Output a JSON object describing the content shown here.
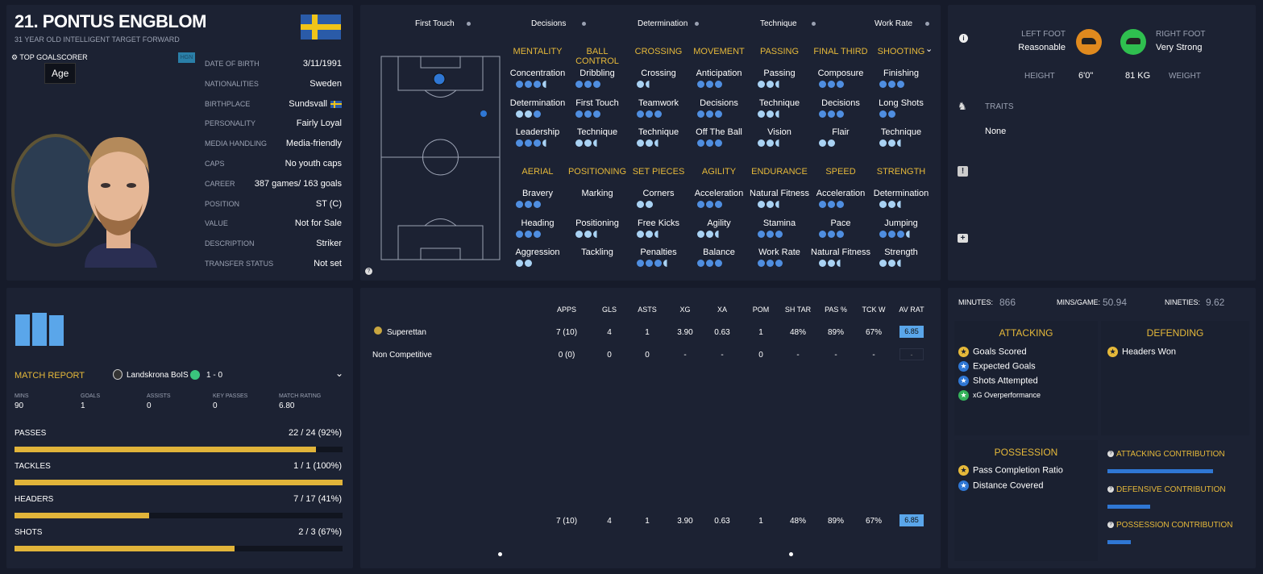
{
  "player": {
    "number_name": "21. PONTUS ENGBLOM",
    "subtitle": "31 YEAR OLD INTELLIGENT TARGET FORWARD",
    "badge": "TOP GOALSCORER",
    "tooltip": "Age",
    "hgn": "HGN",
    "flag_colors": [
      "#2a5ba8",
      "#f0c419"
    ]
  },
  "details": [
    {
      "label": "DATE OF BIRTH",
      "value": "3/11/1991"
    },
    {
      "label": "NATIONALITIES",
      "value": "Sweden"
    },
    {
      "label": "BIRTHPLACE",
      "value": "Sundsvall"
    },
    {
      "label": "PERSONALITY",
      "value": "Fairly Loyal"
    },
    {
      "label": "MEDIA HANDLING",
      "value": "Media-friendly"
    },
    {
      "label": "CAPS",
      "value": "No youth caps"
    },
    {
      "label": "CAREER",
      "value": "387   games/ 163 goals"
    },
    {
      "label": "POSITION",
      "value": "ST (C)"
    },
    {
      "label": "VALUE",
      "value": "Not for Sale"
    },
    {
      "label": "DESCRIPTION",
      "value": "Striker"
    },
    {
      "label": "TRANSFER STATUS",
      "value": "Not set"
    }
  ],
  "top_attrs": [
    "First Touch",
    "Decisions",
    "Determination",
    "Technique",
    "Work Rate"
  ],
  "attr_groups_top": [
    {
      "head": "MENTALITY",
      "items": [
        {
          "n": "Concentration",
          "d": "ddd h"
        },
        {
          "n": "Determination",
          "d": "ll d"
        },
        {
          "n": "Leadership",
          "d": "dddh"
        }
      ]
    },
    {
      "head": "BALL CONTROL",
      "items": [
        {
          "n": "Dribbling",
          "d": "ddd"
        },
        {
          "n": "First Touch",
          "d": "ddd"
        },
        {
          "n": "Technique",
          "d": "llh"
        }
      ]
    },
    {
      "head": "CROSSING",
      "items": [
        {
          "n": "Crossing",
          "d": "lh"
        },
        {
          "n": "Teamwork",
          "d": "ddd"
        },
        {
          "n": "Technique",
          "d": "llh"
        }
      ]
    },
    {
      "head": "MOVEMENT",
      "items": [
        {
          "n": "Anticipation",
          "d": "ddd"
        },
        {
          "n": "Decisions",
          "d": "ddd"
        },
        {
          "n": "Off The Ball",
          "d": "ddd"
        }
      ]
    },
    {
      "head": "PASSING",
      "items": [
        {
          "n": "Passing",
          "d": "llh"
        },
        {
          "n": "Technique",
          "d": "llh"
        },
        {
          "n": "Vision",
          "d": "llh"
        }
      ]
    },
    {
      "head": "FINAL THIRD",
      "items": [
        {
          "n": "Composure",
          "d": "ddd"
        },
        {
          "n": "Decisions",
          "d": "ddd"
        },
        {
          "n": "Flair",
          "d": "ll"
        }
      ]
    },
    {
      "head": "SHOOTING",
      "items": [
        {
          "n": "Finishing",
          "d": "ddd"
        },
        {
          "n": "Long Shots",
          "d": "dd"
        },
        {
          "n": "Technique",
          "d": "llh"
        }
      ]
    }
  ],
  "attr_groups_bottom": [
    {
      "head": "AERIAL",
      "items": [
        {
          "n": "Bravery",
          "d": "ddd"
        },
        {
          "n": "Heading",
          "d": "ddd"
        },
        {
          "n": "Aggression",
          "d": "ll"
        }
      ]
    },
    {
      "head": "POSITIONING",
      "items": [
        {
          "n": "Marking",
          "d": ""
        },
        {
          "n": "Positioning",
          "d": "llh"
        },
        {
          "n": "Tackling",
          "d": ""
        }
      ]
    },
    {
      "head": "SET PIECES",
      "items": [
        {
          "n": "Corners",
          "d": "ll"
        },
        {
          "n": "Free Kicks",
          "d": "llh"
        },
        {
          "n": "Penalties",
          "d": "dddh"
        }
      ]
    },
    {
      "head": "AGILITY",
      "items": [
        {
          "n": "Acceleration",
          "d": "ddd"
        },
        {
          "n": "Agility",
          "d": "llh"
        },
        {
          "n": "Balance",
          "d": "ddd"
        }
      ]
    },
    {
      "head": "ENDURANCE",
      "items": [
        {
          "n": "Natural Fitness",
          "d": "llh"
        },
        {
          "n": "Stamina",
          "d": "ddd"
        },
        {
          "n": "Work Rate",
          "d": "ddd"
        }
      ]
    },
    {
      "head": "SPEED",
      "items": [
        {
          "n": "Acceleration",
          "d": "ddd"
        },
        {
          "n": "Pace",
          "d": "ddd"
        },
        {
          "n": "Natural Fitness",
          "d": "llh"
        }
      ]
    },
    {
      "head": "STRENGTH",
      "items": [
        {
          "n": "Determination",
          "d": "llh"
        },
        {
          "n": "Jumping",
          "d": "dddh"
        },
        {
          "n": "Strength",
          "d": "llh"
        }
      ]
    }
  ],
  "feet": {
    "left_label": "LEFT FOOT",
    "left_value": "Reasonable",
    "right_label": "RIGHT FOOT",
    "right_value": "Very Strong",
    "height_label": "HEIGHT",
    "height_value": "6'0\"",
    "weight_value": "81 KG",
    "weight_label": "WEIGHT",
    "traits_label": "TRAITS",
    "traits_value": "None",
    "left_color": "#e08a1e",
    "right_color": "#2fbf4f"
  },
  "match": {
    "title": "MATCH REPORT",
    "opponent": "Landskrona BoIS",
    "score": "1 - 0",
    "cols": [
      {
        "l": "MINS",
        "v": "90"
      },
      {
        "l": "GOALS",
        "v": "1"
      },
      {
        "l": "ASSISTS",
        "v": "0"
      },
      {
        "l": "KEY PASSES",
        "v": "0"
      },
      {
        "l": "MATCH RATING",
        "v": "6.80"
      }
    ],
    "bars": [
      {
        "l": "PASSES",
        "v": "22 / 24 (92%)",
        "p": 0.92
      },
      {
        "l": "TACKLES",
        "v": "1 / 1 (100%)",
        "p": 1.0
      },
      {
        "l": "HEADERS",
        "v": "7 / 17 (41%)",
        "p": 0.41
      },
      {
        "l": "SHOTS",
        "v": "2 / 3 (67%)",
        "p": 0.67
      }
    ]
  },
  "stats": {
    "headers": [
      "APPS",
      "GLS",
      "ASTS",
      "XG",
      "XA",
      "POM",
      "SH TAR",
      "PAS %",
      "TCK W",
      "AV RAT"
    ],
    "rows": [
      {
        "name": "Superettan",
        "vals": [
          "7 (10)",
          "4",
          "1",
          "3.90",
          "0.63",
          "1",
          "48%",
          "89%",
          "67%",
          "6.85"
        ]
      },
      {
        "name": "Non Competitive",
        "vals": [
          "0 (0)",
          "0",
          "0",
          "-",
          "-",
          "0",
          "-",
          "-",
          "-",
          "-"
        ]
      }
    ],
    "total": [
      "7 (10)",
      "4",
      "1",
      "3.90",
      "0.63",
      "1",
      "48%",
      "89%",
      "67%",
      "6.85"
    ]
  },
  "summary": {
    "minutes_l": "MINUTES:",
    "minutes_v": "866",
    "mpg_l": "MINS/GAME:",
    "mpg_v": "50.94",
    "nineties_l": "NINETIES:",
    "nineties_v": "9.62",
    "attacking": "ATTACKING",
    "defending": "DEFENDING",
    "possession": "POSSESSION",
    "att_items": [
      "Goals Scored",
      "Expected Goals",
      "Shots Attempted",
      "xG Overperformance"
    ],
    "def_items": [
      "Headers Won"
    ],
    "pos_items": [
      "Pass Completion Ratio",
      "Distance Covered"
    ],
    "contrib": [
      {
        "l": "ATTACKING CONTRIBUTION",
        "p": 0.82
      },
      {
        "l": "DEFENSIVE CONTRIBUTION",
        "p": 0.33
      },
      {
        "l": "POSSESSION CONTRIBUTION",
        "p": 0.18
      }
    ]
  }
}
